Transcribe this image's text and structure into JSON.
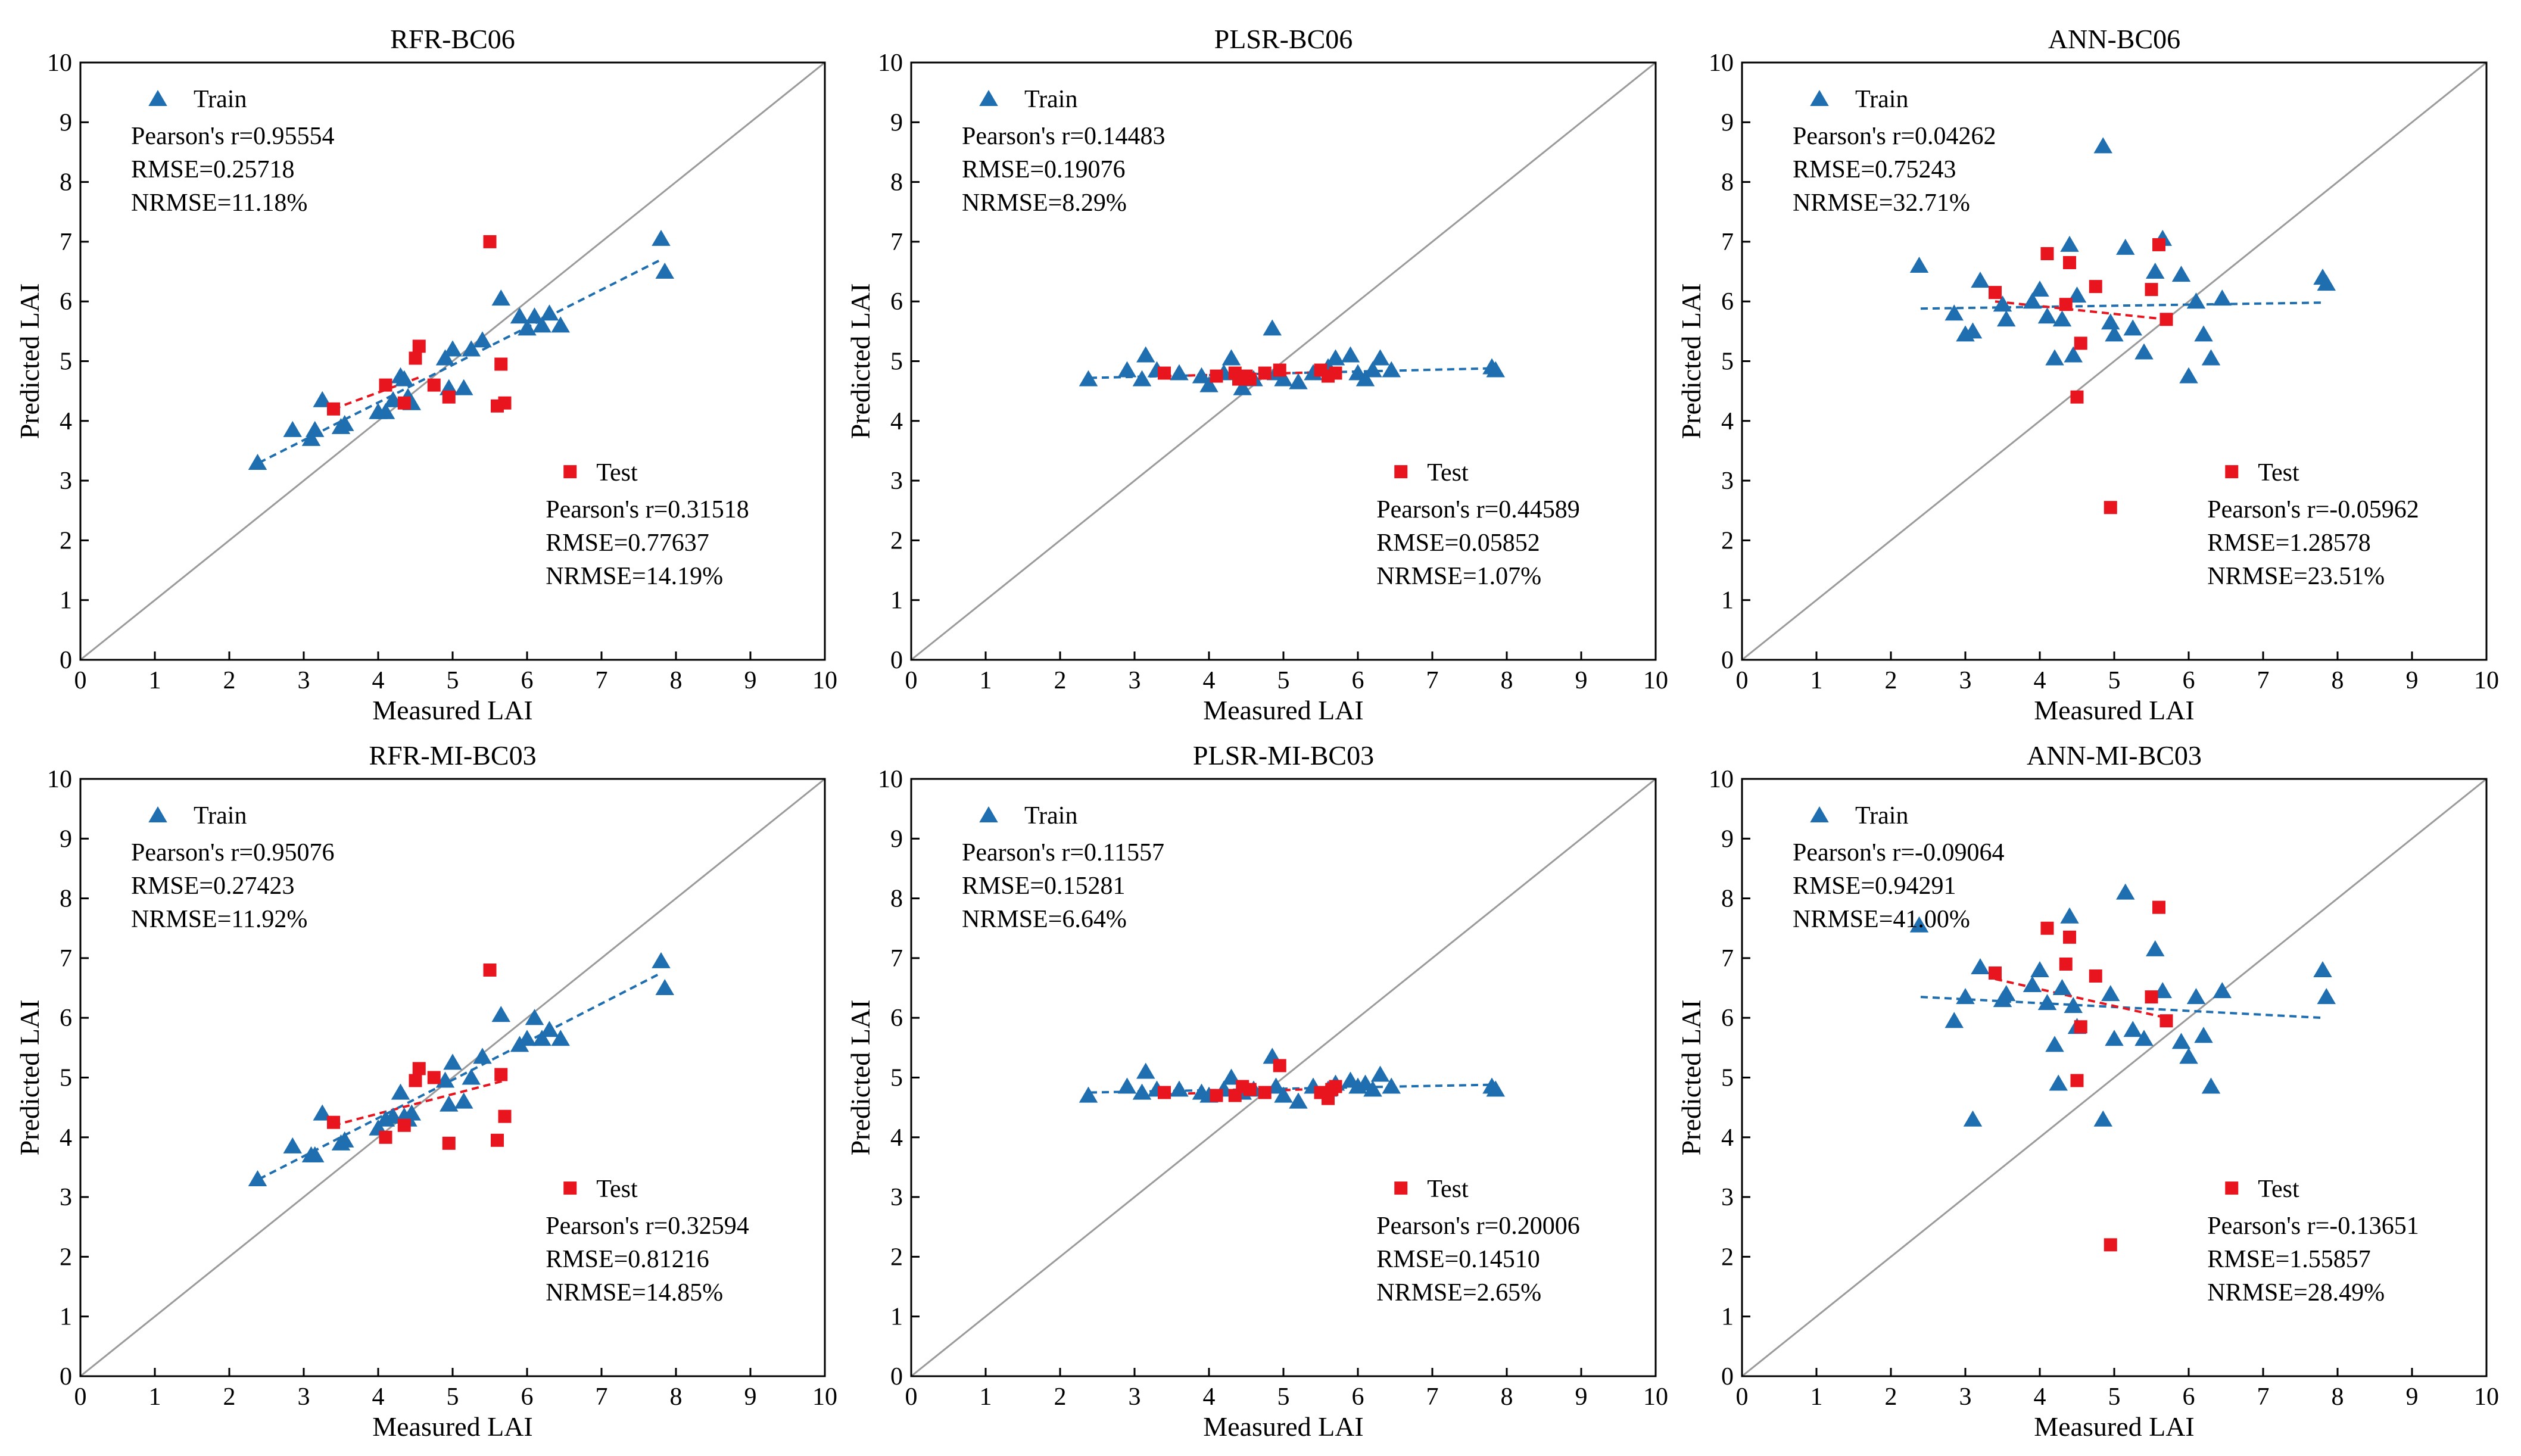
{
  "figure": {
    "xlabel": "Measured LAI",
    "ylabel": "Predicted LAI",
    "xlim": [
      0,
      10
    ],
    "ylim": [
      0,
      10
    ],
    "ticks": [
      0,
      1,
      2,
      3,
      4,
      5,
      6,
      7,
      8,
      9,
      10
    ],
    "train_color": "#1f6fb0",
    "test_color": "#e8141e",
    "line_color": "#9a9a9a"
  },
  "chart_data": [
    {
      "type": "scatter",
      "title": "RFR-BC06",
      "xlabel": "Measured LAI",
      "ylabel": "Predicted LAI",
      "xlim": [
        0,
        10
      ],
      "ylim": [
        0,
        10
      ],
      "train": {
        "name": "Train",
        "pearson_r": "Pearson's r=0.95554",
        "rmse": "RMSE=0.25718",
        "nrmse": "NRMSE=11.18%",
        "fit": [
          [
            2.4,
            3.3
          ],
          [
            7.8,
            6.7
          ]
        ],
        "points": [
          [
            2.38,
            3.3
          ],
          [
            2.85,
            3.85
          ],
          [
            3.1,
            3.7
          ],
          [
            3.15,
            3.85
          ],
          [
            3.25,
            4.35
          ],
          [
            3.5,
            3.9
          ],
          [
            3.55,
            3.95
          ],
          [
            4.0,
            4.15
          ],
          [
            4.1,
            4.15
          ],
          [
            4.2,
            4.35
          ],
          [
            4.3,
            4.75
          ],
          [
            4.35,
            4.7
          ],
          [
            4.4,
            4.4
          ],
          [
            4.45,
            4.3
          ],
          [
            4.9,
            5.05
          ],
          [
            4.95,
            4.55
          ],
          [
            5.0,
            5.2
          ],
          [
            5.15,
            4.55
          ],
          [
            5.25,
            5.2
          ],
          [
            5.4,
            5.35
          ],
          [
            5.65,
            6.05
          ],
          [
            5.9,
            5.75
          ],
          [
            6.0,
            5.55
          ],
          [
            6.1,
            5.75
          ],
          [
            6.2,
            5.6
          ],
          [
            6.3,
            5.8
          ],
          [
            6.45,
            5.6
          ],
          [
            7.8,
            7.05
          ],
          [
            7.85,
            6.5
          ]
        ]
      },
      "test": {
        "name": "Test",
        "pearson_r": "Pearson's r=0.31518",
        "rmse": "RMSE=0.77637",
        "nrmse": "NRMSE=14.19%",
        "fit": [
          [
            3.4,
            4.2
          ],
          [
            4.6,
            4.75
          ]
        ],
        "points": [
          [
            3.4,
            4.2
          ],
          [
            4.1,
            4.6
          ],
          [
            4.35,
            4.3
          ],
          [
            4.5,
            5.05
          ],
          [
            4.55,
            5.25
          ],
          [
            4.75,
            4.6
          ],
          [
            4.95,
            4.4
          ],
          [
            5.5,
            7.0
          ],
          [
            5.6,
            4.25
          ],
          [
            5.65,
            4.95
          ],
          [
            5.7,
            4.3
          ]
        ]
      }
    },
    {
      "type": "scatter",
      "title": "PLSR-BC06",
      "xlabel": "Measured LAI",
      "ylabel": "Predicted LAI",
      "xlim": [
        0,
        10
      ],
      "ylim": [
        0,
        10
      ],
      "train": {
        "name": "Train",
        "pearson_r": "Pearson's r=0.14483",
        "rmse": "RMSE=0.19076",
        "nrmse": "NRMSE=8.29%",
        "fit": [
          [
            2.4,
            4.72
          ],
          [
            7.8,
            4.88
          ]
        ],
        "points": [
          [
            2.38,
            4.7
          ],
          [
            2.9,
            4.85
          ],
          [
            3.1,
            4.7
          ],
          [
            3.15,
            5.1
          ],
          [
            3.3,
            4.85
          ],
          [
            3.6,
            4.8
          ],
          [
            3.9,
            4.75
          ],
          [
            4.0,
            4.6
          ],
          [
            4.2,
            4.8
          ],
          [
            4.3,
            5.05
          ],
          [
            4.45,
            4.55
          ],
          [
            4.6,
            4.7
          ],
          [
            4.85,
            5.55
          ],
          [
            4.9,
            4.8
          ],
          [
            5.0,
            4.7
          ],
          [
            5.2,
            4.65
          ],
          [
            5.4,
            4.8
          ],
          [
            5.6,
            4.9
          ],
          [
            5.7,
            5.05
          ],
          [
            5.9,
            5.1
          ],
          [
            6.0,
            4.8
          ],
          [
            6.1,
            4.7
          ],
          [
            6.2,
            4.85
          ],
          [
            6.3,
            5.05
          ],
          [
            6.45,
            4.85
          ],
          [
            7.8,
            4.9
          ],
          [
            7.85,
            4.85
          ]
        ]
      },
      "test": {
        "name": "Test",
        "pearson_r": "Pearson's r=0.44589",
        "rmse": "RMSE=0.05852",
        "nrmse": "NRMSE=1.07%",
        "fit": [
          [
            3.4,
            4.75
          ],
          [
            5.7,
            4.82
          ]
        ],
        "points": [
          [
            3.4,
            4.8
          ],
          [
            4.1,
            4.75
          ],
          [
            4.35,
            4.8
          ],
          [
            4.4,
            4.7
          ],
          [
            4.5,
            4.75
          ],
          [
            4.55,
            4.7
          ],
          [
            4.75,
            4.8
          ],
          [
            4.95,
            4.85
          ],
          [
            5.5,
            4.85
          ],
          [
            5.6,
            4.75
          ],
          [
            5.7,
            4.8
          ]
        ]
      }
    },
    {
      "type": "scatter",
      "title": "ANN-BC06",
      "xlabel": "Measured LAI",
      "ylabel": "Predicted LAI",
      "xlim": [
        0,
        10
      ],
      "ylim": [
        0,
        10
      ],
      "train": {
        "name": "Train",
        "pearson_r": "Pearson's r=0.04262",
        "rmse": "RMSE=0.75243",
        "nrmse": "NRMSE=32.71%",
        "fit": [
          [
            2.4,
            5.88
          ],
          [
            7.8,
            5.98
          ]
        ],
        "points": [
          [
            2.38,
            6.6
          ],
          [
            2.85,
            5.8
          ],
          [
            3.0,
            5.45
          ],
          [
            3.1,
            5.5
          ],
          [
            3.2,
            6.35
          ],
          [
            3.5,
            5.95
          ],
          [
            3.55,
            5.7
          ],
          [
            3.9,
            6.0
          ],
          [
            4.0,
            6.2
          ],
          [
            4.1,
            5.75
          ],
          [
            4.2,
            5.05
          ],
          [
            4.3,
            5.7
          ],
          [
            4.4,
            6.95
          ],
          [
            4.45,
            5.1
          ],
          [
            4.5,
            6.1
          ],
          [
            4.85,
            8.6
          ],
          [
            4.95,
            5.65
          ],
          [
            5.0,
            5.45
          ],
          [
            5.15,
            6.9
          ],
          [
            5.25,
            5.55
          ],
          [
            5.4,
            5.15
          ],
          [
            5.55,
            6.5
          ],
          [
            5.65,
            7.05
          ],
          [
            5.9,
            6.45
          ],
          [
            6.0,
            4.75
          ],
          [
            6.1,
            6.0
          ],
          [
            6.2,
            5.45
          ],
          [
            6.3,
            5.05
          ],
          [
            6.45,
            6.05
          ],
          [
            7.8,
            6.4
          ],
          [
            7.85,
            6.3
          ]
        ]
      },
      "test": {
        "name": "Test",
        "pearson_r": "Pearson's r=-0.05962",
        "rmse": "RMSE=1.28578",
        "nrmse": "NRMSE=23.51%",
        "fit": [
          [
            3.4,
            6.0
          ],
          [
            5.7,
            5.7
          ]
        ],
        "points": [
          [
            3.4,
            6.15
          ],
          [
            4.1,
            6.8
          ],
          [
            4.35,
            5.95
          ],
          [
            4.4,
            6.65
          ],
          [
            4.5,
            4.4
          ],
          [
            4.55,
            5.3
          ],
          [
            4.75,
            6.25
          ],
          [
            4.95,
            2.55
          ],
          [
            5.5,
            6.2
          ],
          [
            5.6,
            6.95
          ],
          [
            5.7,
            5.7
          ]
        ]
      }
    },
    {
      "type": "scatter",
      "title": "RFR-MI-BC03",
      "xlabel": "Measured LAI",
      "ylabel": "Predicted LAI",
      "xlim": [
        0,
        10
      ],
      "ylim": [
        0,
        10
      ],
      "train": {
        "name": "Train",
        "pearson_r": "Pearson's r=0.95076",
        "rmse": "RMSE=0.27423",
        "nrmse": "NRMSE=11.92%",
        "fit": [
          [
            2.4,
            3.3
          ],
          [
            7.8,
            6.75
          ]
        ],
        "points": [
          [
            2.38,
            3.3
          ],
          [
            2.85,
            3.85
          ],
          [
            3.1,
            3.7
          ],
          [
            3.15,
            3.7
          ],
          [
            3.25,
            4.4
          ],
          [
            3.5,
            3.9
          ],
          [
            3.55,
            3.95
          ],
          [
            4.0,
            4.15
          ],
          [
            4.1,
            4.3
          ],
          [
            4.2,
            4.35
          ],
          [
            4.3,
            4.75
          ],
          [
            4.35,
            4.35
          ],
          [
            4.4,
            4.3
          ],
          [
            4.45,
            4.4
          ],
          [
            4.9,
            4.95
          ],
          [
            4.95,
            4.55
          ],
          [
            5.0,
            5.25
          ],
          [
            5.15,
            4.6
          ],
          [
            5.25,
            5.0
          ],
          [
            5.4,
            5.35
          ],
          [
            5.65,
            6.05
          ],
          [
            5.9,
            5.55
          ],
          [
            6.0,
            5.65
          ],
          [
            6.1,
            6.0
          ],
          [
            6.2,
            5.65
          ],
          [
            6.3,
            5.8
          ],
          [
            6.45,
            5.65
          ],
          [
            7.8,
            6.95
          ],
          [
            7.85,
            6.5
          ]
        ]
      },
      "test": {
        "name": "Test",
        "pearson_r": "Pearson's r=0.32594",
        "rmse": "RMSE=0.81216",
        "nrmse": "NRMSE=14.85%",
        "fit": [
          [
            3.4,
            4.2
          ],
          [
            5.7,
            4.95
          ]
        ],
        "points": [
          [
            3.4,
            4.25
          ],
          [
            4.1,
            4.0
          ],
          [
            4.35,
            4.2
          ],
          [
            4.5,
            4.95
          ],
          [
            4.55,
            5.15
          ],
          [
            4.75,
            5.0
          ],
          [
            4.95,
            3.9
          ],
          [
            5.5,
            6.8
          ],
          [
            5.6,
            3.95
          ],
          [
            5.65,
            5.05
          ],
          [
            5.7,
            4.35
          ]
        ]
      }
    },
    {
      "type": "scatter",
      "title": "PLSR-MI-BC03",
      "xlabel": "Measured LAI",
      "ylabel": "Predicted LAI",
      "xlim": [
        0,
        10
      ],
      "ylim": [
        0,
        10
      ],
      "train": {
        "name": "Train",
        "pearson_r": "Pearson's r=0.11557",
        "rmse": "RMSE=0.15281",
        "nrmse": "NRMSE=6.64%",
        "fit": [
          [
            2.4,
            4.75
          ],
          [
            7.8,
            4.88
          ]
        ],
        "points": [
          [
            2.38,
            4.7
          ],
          [
            2.9,
            4.85
          ],
          [
            3.1,
            4.75
          ],
          [
            3.15,
            5.1
          ],
          [
            3.3,
            4.8
          ],
          [
            3.6,
            4.8
          ],
          [
            3.9,
            4.75
          ],
          [
            4.0,
            4.7
          ],
          [
            4.2,
            4.8
          ],
          [
            4.3,
            5.0
          ],
          [
            4.45,
            4.75
          ],
          [
            4.6,
            4.8
          ],
          [
            4.85,
            5.35
          ],
          [
            4.9,
            4.85
          ],
          [
            5.0,
            4.7
          ],
          [
            5.2,
            4.6
          ],
          [
            5.4,
            4.85
          ],
          [
            5.6,
            4.8
          ],
          [
            5.7,
            4.9
          ],
          [
            5.9,
            4.95
          ],
          [
            6.0,
            4.85
          ],
          [
            6.1,
            4.9
          ],
          [
            6.2,
            4.8
          ],
          [
            6.3,
            5.05
          ],
          [
            6.45,
            4.85
          ],
          [
            7.8,
            4.85
          ],
          [
            7.85,
            4.8
          ]
        ]
      },
      "test": {
        "name": "Test",
        "pearson_r": "Pearson's r=0.20006",
        "rmse": "RMSE=0.14510",
        "nrmse": "NRMSE=2.65%",
        "fit": [
          [
            3.4,
            4.72
          ],
          [
            5.7,
            4.82
          ]
        ],
        "points": [
          [
            3.4,
            4.75
          ],
          [
            4.1,
            4.7
          ],
          [
            4.35,
            4.7
          ],
          [
            4.45,
            4.85
          ],
          [
            4.55,
            4.8
          ],
          [
            4.75,
            4.75
          ],
          [
            4.95,
            5.2
          ],
          [
            5.5,
            4.75
          ],
          [
            5.6,
            4.65
          ],
          [
            5.65,
            4.8
          ],
          [
            5.7,
            4.85
          ]
        ]
      }
    },
    {
      "type": "scatter",
      "title": "ANN-MI-BC03",
      "xlabel": "Measured LAI",
      "ylabel": "Predicted LAI",
      "xlim": [
        0,
        10
      ],
      "ylim": [
        0,
        10
      ],
      "train": {
        "name": "Train",
        "pearson_r": "Pearson's r=-0.09064",
        "rmse": "RMSE=0.94291",
        "nrmse": "NRMSE=41.00%",
        "fit": [
          [
            2.4,
            6.35
          ],
          [
            7.8,
            6.0
          ]
        ],
        "points": [
          [
            2.38,
            7.55
          ],
          [
            2.85,
            5.95
          ],
          [
            3.0,
            6.35
          ],
          [
            3.1,
            4.3
          ],
          [
            3.2,
            6.85
          ],
          [
            3.5,
            6.3
          ],
          [
            3.55,
            6.4
          ],
          [
            3.9,
            6.55
          ],
          [
            4.0,
            6.8
          ],
          [
            4.1,
            6.25
          ],
          [
            4.2,
            5.55
          ],
          [
            4.25,
            4.9
          ],
          [
            4.3,
            6.5
          ],
          [
            4.4,
            7.7
          ],
          [
            4.45,
            6.2
          ],
          [
            4.5,
            5.85
          ],
          [
            4.85,
            4.3
          ],
          [
            4.95,
            6.4
          ],
          [
            5.0,
            5.65
          ],
          [
            5.15,
            8.1
          ],
          [
            5.25,
            5.8
          ],
          [
            5.4,
            5.65
          ],
          [
            5.55,
            7.15
          ],
          [
            5.65,
            6.45
          ],
          [
            5.9,
            5.6
          ],
          [
            6.0,
            5.35
          ],
          [
            6.1,
            6.35
          ],
          [
            6.2,
            5.7
          ],
          [
            6.3,
            4.85
          ],
          [
            6.45,
            6.45
          ],
          [
            7.8,
            6.8
          ],
          [
            7.85,
            6.35
          ]
        ]
      },
      "test": {
        "name": "Test",
        "pearson_r": "Pearson's r=-0.13651",
        "rmse": "RMSE=1.55857",
        "nrmse": "NRMSE=28.49%",
        "fit": [
          [
            3.4,
            6.65
          ],
          [
            5.7,
            6.0
          ]
        ],
        "points": [
          [
            3.4,
            6.75
          ],
          [
            4.1,
            7.5
          ],
          [
            4.35,
            6.9
          ],
          [
            4.4,
            7.35
          ],
          [
            4.5,
            4.95
          ],
          [
            4.55,
            5.85
          ],
          [
            4.75,
            6.7
          ],
          [
            4.95,
            2.2
          ],
          [
            5.5,
            6.35
          ],
          [
            5.6,
            7.85
          ],
          [
            5.7,
            5.95
          ]
        ]
      }
    }
  ]
}
